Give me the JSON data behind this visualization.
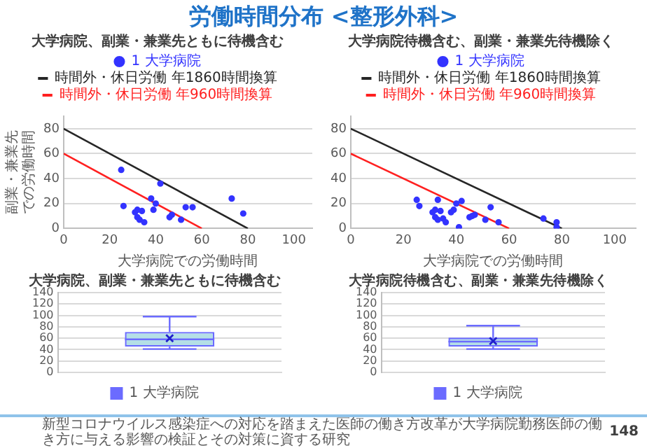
{
  "chart_data": [
    {
      "type": "other",
      "title": "労働時間分布 <整形外科>",
      "annotations": [
        "新型コロナウイルス感染症への対応を踏まえた医師の働き方改革が大学病院勤務医師の働き方に与える影響の検証とその対策に資する研究",
        "148"
      ]
    },
    {
      "type": "scatter",
      "title": "大学病院、副業・兼業先ともに待機含む",
      "xlabel": "大学病院での労働時間",
      "ylabel": "副業・兼業先での労働時間",
      "xlim": [
        0,
        108
      ],
      "xticks": [
        0,
        20,
        40,
        60,
        80,
        100
      ],
      "ylim": [
        0,
        90
      ],
      "yticks": [
        0,
        20,
        40,
        60,
        80
      ],
      "grid": "y",
      "legend": "top",
      "marker": "circle",
      "series": [
        {
          "name": "1 大学病院",
          "color": "#3333ff",
          "x": [
            25,
            26,
            31,
            32,
            32,
            33,
            34,
            35,
            38,
            39,
            40,
            42,
            46,
            47,
            51,
            53,
            56,
            73,
            78
          ],
          "values": [
            47,
            18,
            13,
            15,
            9,
            7,
            14,
            5,
            24,
            15,
            20,
            36,
            9,
            11,
            7,
            17,
            17,
            24,
            12
          ]
        },
        {
          "name": "時間外・休日労働 年1860時間換算",
          "type": "line",
          "marker": "none",
          "color": "#262626",
          "x": [
            0,
            80
          ],
          "values": [
            80,
            0
          ]
        },
        {
          "name": "時間外・休日労働 年960時間換算",
          "type": "line",
          "marker": "none",
          "color": "#ff2020",
          "x": [
            0,
            60
          ],
          "values": [
            60,
            0
          ]
        }
      ]
    },
    {
      "type": "scatter",
      "title": "大学病院待機含む、副業・兼業先待機除く",
      "xlabel": "大学病院での労働時間",
      "xlim": [
        0,
        108
      ],
      "xticks": [
        0,
        20,
        40,
        60,
        80,
        100
      ],
      "ylim": [
        0,
        90
      ],
      "yticks": [
        0,
        20,
        40,
        60,
        80
      ],
      "grid": "y",
      "legend": "top",
      "marker": "circle",
      "series": [
        {
          "name": "1 大学病院",
          "color": "#3333ff",
          "x": [
            25,
            26,
            31,
            32,
            32,
            33,
            33,
            34,
            35,
            36,
            38,
            39,
            40,
            41,
            42,
            45,
            46,
            47,
            51,
            53,
            56,
            73,
            78,
            78
          ],
          "values": [
            23,
            18,
            13,
            15,
            9,
            7,
            23,
            14,
            8,
            5,
            13,
            15,
            20,
            1,
            22,
            9,
            10,
            11,
            7,
            17,
            5,
            8,
            5,
            1
          ]
        },
        {
          "name": "時間外・休日労働 年1860時間換算",
          "type": "line",
          "marker": "none",
          "color": "#262626",
          "x": [
            0,
            80
          ],
          "values": [
            80,
            0
          ]
        },
        {
          "name": "時間外・休日労働 年960時間換算",
          "type": "line",
          "marker": "none",
          "color": "#ff2020",
          "x": [
            0,
            60
          ],
          "values": [
            60,
            0
          ]
        }
      ]
    },
    {
      "type": "box",
      "title": "大学病院、副業・兼業先ともに待機含む",
      "categories": [
        null
      ],
      "ylim": [
        0,
        140
      ],
      "yticks": [
        0,
        20,
        40,
        60,
        80,
        100,
        120,
        140
      ],
      "grid": "y",
      "legend": "bottom",
      "series": [
        {
          "name": "1 大学病院",
          "color": "#6b6bff",
          "boxes": [
            {
              "low": 41,
              "q1": 45,
              "median": 58,
              "q3": 71,
              "high": 98,
              "mean": 60
            }
          ]
        }
      ]
    },
    {
      "type": "box",
      "title": "大学病院待機含む、副業・兼業先待機除く",
      "categories": [
        null
      ],
      "ylim": [
        0,
        140
      ],
      "yticks": [
        0,
        20,
        40,
        60,
        80,
        100,
        120,
        140
      ],
      "grid": "y",
      "legend": "bottom",
      "series": [
        {
          "name": "1 大学病院",
          "color": "#6b6bff",
          "boxes": [
            {
              "low": 41,
              "q1": 45,
              "median": 54,
              "q3": 61,
              "high": 82,
              "mean": 55
            }
          ]
        }
      ]
    }
  ]
}
